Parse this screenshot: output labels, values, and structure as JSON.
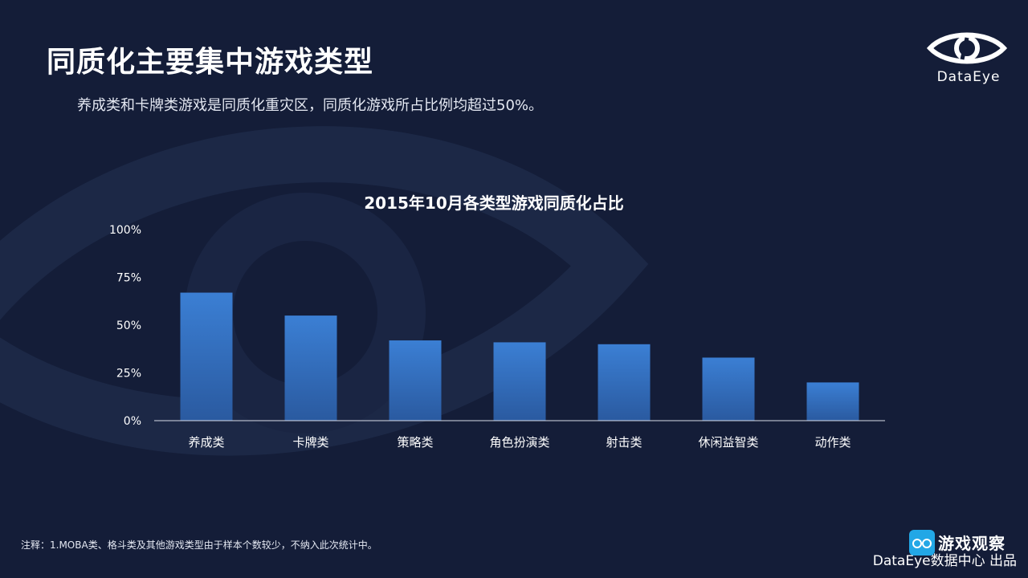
{
  "slide": {
    "title": "同质化主要集中游戏类型",
    "subtitle": "养成类和卡牌类游戏是同质化重灾区，同质化游戏所占比例均超过50%。",
    "footnote": "注释：1.MOBA类、格斗类及其他游戏类型由于样本个数较少，不纳入此次统计中。",
    "credit": "DataEye数据中心 出品"
  },
  "logo": {
    "text": "DataEye",
    "icon": "eye-logo-icon"
  },
  "watermark": {
    "text": "游戏观察",
    "icon": "gamepad-icon"
  },
  "colors": {
    "background": "#141d38",
    "bar_top": "#3b7fd4",
    "bar_bottom": "#2a5aa0",
    "axis": "#d9dde8",
    "text": "#ffffff"
  },
  "chart_data": {
    "type": "bar",
    "title": "2015年10月各类型游戏同质化占比",
    "xlabel": "",
    "ylabel": "",
    "categories": [
      "养成类",
      "卡牌类",
      "策略类",
      "角色扮演类",
      "射击类",
      "休闲益智类",
      "动作类"
    ],
    "values": [
      67,
      55,
      42,
      41,
      40,
      33,
      20
    ],
    "ylim": [
      0,
      100
    ],
    "yticks": [
      0,
      25,
      50,
      75,
      100
    ],
    "ytick_labels": [
      "0%",
      "25%",
      "50%",
      "75%",
      "100%"
    ],
    "grid": false,
    "legend": "none"
  }
}
